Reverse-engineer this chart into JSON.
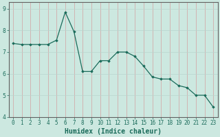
{
  "x": [
    0,
    1,
    2,
    3,
    4,
    5,
    6,
    7,
    8,
    9,
    10,
    11,
    12,
    13,
    14,
    15,
    16,
    17,
    18,
    19,
    20,
    21,
    22,
    23
  ],
  "y": [
    7.4,
    7.35,
    7.35,
    7.35,
    7.35,
    7.55,
    8.85,
    7.95,
    6.1,
    6.1,
    6.6,
    6.6,
    7.0,
    7.0,
    6.8,
    6.35,
    5.85,
    5.75,
    5.75,
    5.45,
    5.35,
    5.0,
    5.0,
    4.45
  ],
  "xlim": [
    -0.5,
    23.5
  ],
  "ylim": [
    4.0,
    9.3
  ],
  "yticks": [
    4,
    5,
    6,
    7,
    8,
    9
  ],
  "xtick_labels": [
    "0",
    "1",
    "2",
    "3",
    "4",
    "5",
    "6",
    "7",
    "8",
    "9",
    "10",
    "11",
    "12",
    "13",
    "14",
    "15",
    "16",
    "17",
    "18",
    "19",
    "20",
    "21",
    "22",
    "23"
  ],
  "xlabel": "Humidex (Indice chaleur)",
  "line_color": "#1a6b5a",
  "marker": "D",
  "marker_size": 1.8,
  "bg_color": "#cce8e0",
  "grid_color_v": "#d4a0a0",
  "grid_color_h": "#b8d4ce",
  "axes_color": "#606060",
  "tick_fontsize": 5.5,
  "ylabel_fontsize": 6.5,
  "xlabel_fontsize": 7.0,
  "linewidth": 0.9
}
